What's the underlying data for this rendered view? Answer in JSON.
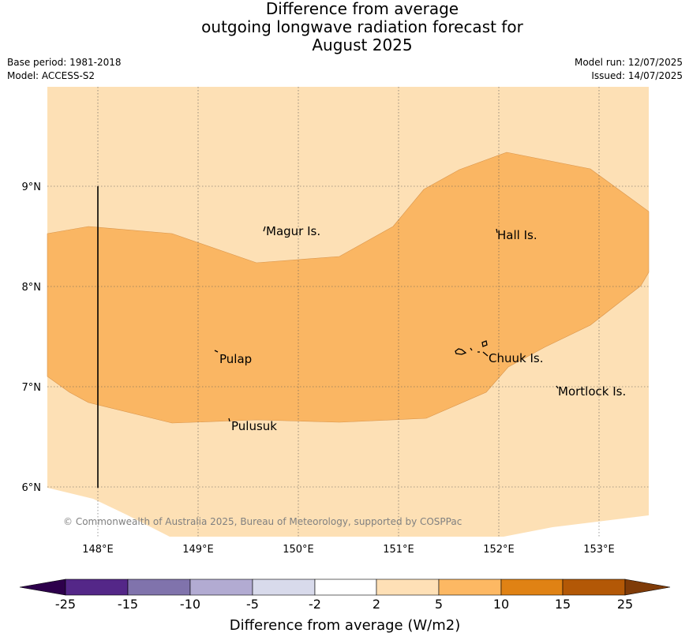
{
  "title": {
    "line1": "Difference from average",
    "line2": "outgoing longwave radiation forecast for",
    "line3": "August 2025"
  },
  "meta": {
    "base_period": "Base period: 1981-2018",
    "model": "Model: ACCESS-S2",
    "model_run": "Model run: 12/07/2025",
    "issued": "Issued: 14/07/2025"
  },
  "map": {
    "lat_ticks": [
      "9°N",
      "8°N",
      "7°N",
      "6°N"
    ],
    "lon_ticks": [
      "148°E",
      "149°E",
      "150°E",
      "151°E",
      "152°E",
      "153°E"
    ],
    "places": [
      "Magur Is.",
      "Hall Is.",
      "Pulap",
      "Chuuk Is.",
      "Mortlock Is.",
      "Pulusuk"
    ],
    "copyright": "© Commonwealth of Australia 2025, Bureau of Meteorology, supported by COSPPac",
    "colors": {
      "band_2_5": "#fde0b5",
      "band_5_10": "#fab663",
      "grid": "#555555",
      "coast": "#000000"
    }
  },
  "colorbar": {
    "title": "Difference from average (W/m2)",
    "labels": [
      "-25",
      "-15",
      "-10",
      "-5",
      "-2",
      "2",
      "5",
      "10",
      "15",
      "25"
    ],
    "colors": [
      "#2d004b",
      "#542788",
      "#8073ac",
      "#b2abd2",
      "#d8daeb",
      "#ffffff",
      "#fee0b6",
      "#fdb863",
      "#e08214",
      "#b35806",
      "#7f3b08"
    ]
  }
}
